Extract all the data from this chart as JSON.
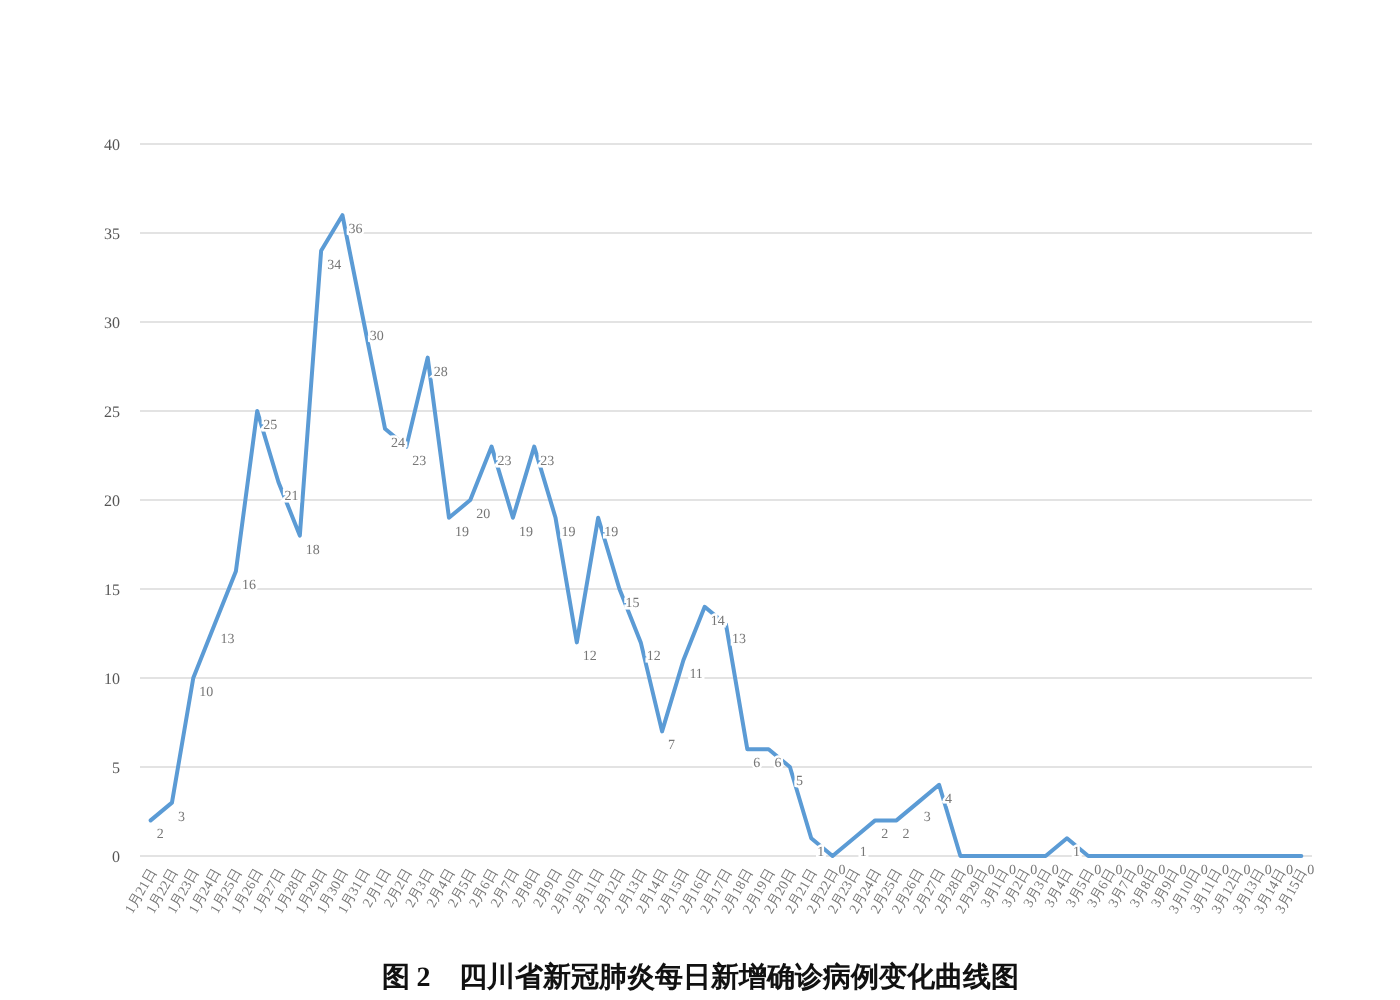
{
  "chart_data": {
    "type": "line",
    "title": "图 2　四川省新冠肺炎每日新增确诊病例变化曲线图",
    "categories": [
      "1月21日",
      "1月22日",
      "1月23日",
      "1月24日",
      "1月25日",
      "1月26日",
      "1月27日",
      "1月28日",
      "1月29日",
      "1月30日",
      "1月31日",
      "2月1日",
      "2月2日",
      "2月3日",
      "2月4日",
      "2月5日",
      "2月6日",
      "2月7日",
      "2月8日",
      "2月9日",
      "2月10日",
      "2月11日",
      "2月12日",
      "2月13日",
      "2月14日",
      "2月15日",
      "2月16日",
      "2月17日",
      "2月18日",
      "2月19日",
      "2月20日",
      "2月21日",
      "2月22日",
      "2月23日",
      "2月24日",
      "2月25日",
      "2月26日",
      "2月27日",
      "2月28日",
      "2月29日",
      "3月1日",
      "3月2日",
      "3月3日",
      "3月4日",
      "3月5日",
      "3月6日",
      "3月7日",
      "3月8日",
      "3月9日",
      "3月10日",
      "3月11日",
      "3月12日",
      "3月13日",
      "3月14日",
      "3月15日"
    ],
    "series": [
      {
        "color": "#5b9bd5",
        "values": [
          2,
          3,
          10,
          13,
          16,
          25,
          21,
          18,
          34,
          36,
          30,
          24,
          23,
          28,
          19,
          20,
          23,
          19,
          23,
          19,
          12,
          19,
          15,
          12,
          7,
          11,
          14,
          13,
          6,
          6,
          5,
          1,
          0,
          1,
          2,
          2,
          3,
          4,
          0,
          0,
          0,
          0,
          0,
          1,
          0,
          0,
          0,
          0,
          0,
          0,
          0,
          0,
          0,
          0,
          0
        ]
      }
    ],
    "ylim": [
      0,
      40
    ],
    "yticks": [
      0,
      5,
      10,
      15,
      20,
      25,
      30,
      35,
      40
    ],
    "grid": "y",
    "data_labels": true
  }
}
